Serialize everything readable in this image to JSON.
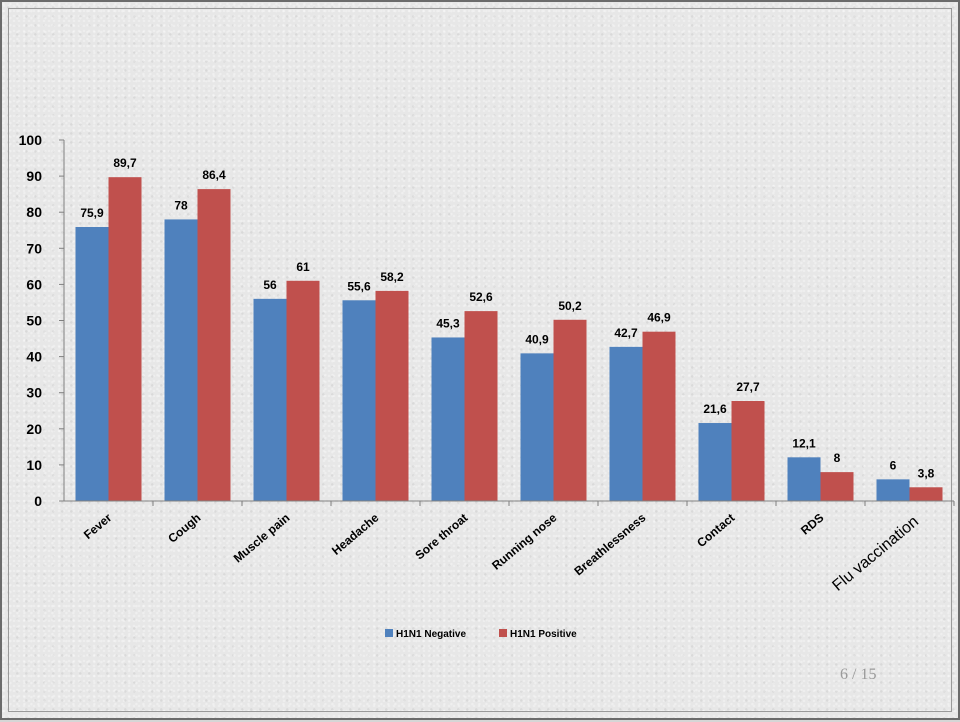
{
  "page": {
    "number": "6",
    "total": "15",
    "separator": "/"
  },
  "colors": {
    "negative": "#4f81bd",
    "positive": "#c0504d"
  },
  "chart_data": {
    "type": "bar",
    "title": "",
    "xlabel": "",
    "ylabel": "",
    "ylim": [
      0,
      100
    ],
    "yticks": [
      0,
      10,
      20,
      30,
      40,
      50,
      60,
      70,
      80,
      90,
      100
    ],
    "grid": false,
    "legend_position": "bottom",
    "categories": [
      "Fever",
      "Cough",
      "Muscle pain",
      "Headache",
      "Sore throat",
      "Running nose",
      "Breathlessness",
      "Contact",
      "RDS",
      "Flu vaccination"
    ],
    "series": [
      {
        "name": "H1N1 Negative",
        "values": [
          75.9,
          78,
          56,
          55.6,
          45.3,
          40.9,
          42.7,
          21.6,
          12.1,
          6
        ],
        "labels": [
          "75,9",
          "78",
          "56",
          "55,6",
          "45,3",
          "40,9",
          "42,7",
          "21,6",
          "12,1",
          "6"
        ]
      },
      {
        "name": "H1N1 Positive",
        "values": [
          89.7,
          86.4,
          61,
          58.2,
          52.6,
          50.2,
          46.9,
          27.7,
          8,
          3.8
        ],
        "labels": [
          "89,7",
          "86,4",
          "61",
          "58,2",
          "52,6",
          "50,2",
          "46,9",
          "27,7",
          "8",
          "3,8"
        ]
      }
    ]
  }
}
